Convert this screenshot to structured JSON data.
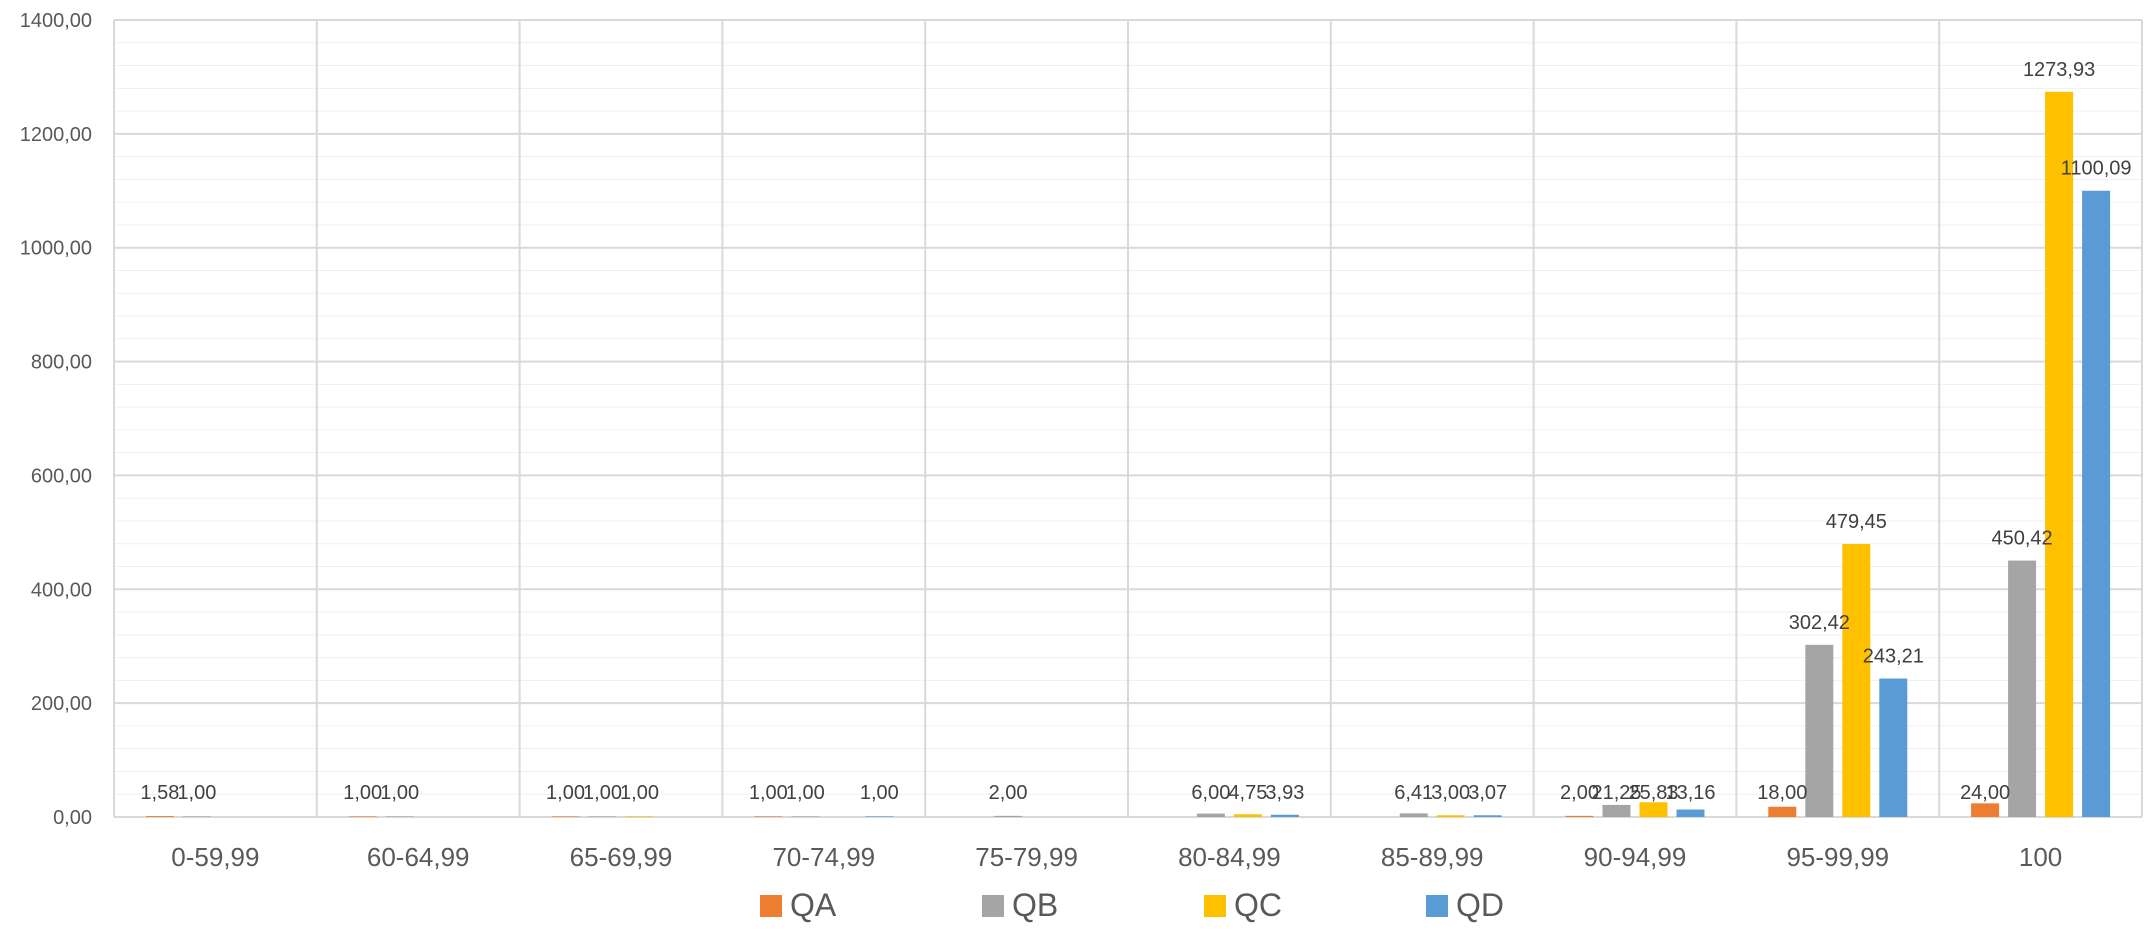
{
  "chart_data": {
    "type": "bar",
    "title": "",
    "xlabel": "",
    "ylabel": "",
    "ylim": [
      0,
      1400
    ],
    "y_ticks": [
      "0,00",
      "200,00",
      "400,00",
      "600,00",
      "800,00",
      "1000,00",
      "1200,00",
      "1400,00"
    ],
    "grid": true,
    "legend_position": "bottom",
    "categories": [
      "0-59,99",
      "60-64,99",
      "65-69,99",
      "70-74,99",
      "75-79,99",
      "80-84,99",
      "85-89,99",
      "90-94,99",
      "95-99,99",
      "100"
    ],
    "series": [
      {
        "name": "QA",
        "color": "#ED7D31",
        "values": [
          1.58,
          1.0,
          1.0,
          1.0,
          0,
          0,
          0,
          2.0,
          18.0,
          24.0
        ],
        "labels": [
          "1,58",
          "1,00",
          "1,00",
          "1,00",
          "",
          "",
          "",
          "2,00",
          "18,00",
          "24,00"
        ]
      },
      {
        "name": "QB",
        "color": "#A5A5A5",
        "values": [
          1.0,
          1.0,
          1.0,
          1.0,
          2.0,
          6.0,
          6.41,
          21.25,
          302.42,
          450.42
        ],
        "labels": [
          "1,00",
          "1,00",
          "1,00",
          "1,00",
          "2,00",
          "6,00",
          "6,41",
          "21,25",
          "302,42",
          "450,42"
        ]
      },
      {
        "name": "QC",
        "color": "#FFC000",
        "values": [
          0,
          0,
          1.0,
          0,
          0,
          4.75,
          3.0,
          25.83,
          479.45,
          1273.93
        ],
        "labels": [
          "",
          "",
          "1,00",
          "",
          "",
          "4,75",
          "3,00",
          "25,83",
          "479,45",
          "1273,93"
        ]
      },
      {
        "name": "QD",
        "color": "#5B9BD5",
        "values": [
          0,
          0,
          0,
          1.0,
          0,
          3.93,
          3.07,
          13.16,
          243.21,
          1100.09
        ],
        "labels": [
          "",
          "",
          "",
          "1,00",
          "",
          "3,93",
          "3,07",
          "13,16",
          "243,21",
          "1100,09"
        ]
      }
    ]
  }
}
